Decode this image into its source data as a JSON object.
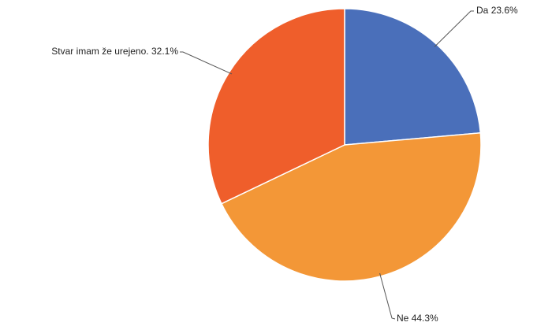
{
  "chart_data": {
    "type": "pie",
    "categories": [
      "Da",
      "Ne",
      "Stvar imam že urejeno."
    ],
    "values": [
      23.6,
      44.3,
      32.1
    ],
    "value_labels": [
      "23.6%",
      "44.3%",
      "32.1%"
    ],
    "colors": [
      "#4a6fba",
      "#f39737",
      "#ef5e2b"
    ]
  }
}
